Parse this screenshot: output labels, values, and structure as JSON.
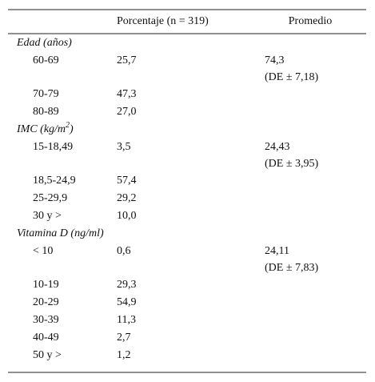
{
  "table": {
    "header": [
      "Porcentaje (n = 319)",
      "Promedio"
    ],
    "sections": [
      {
        "title": "Edad (años)",
        "rows": [
          {
            "label": "60-69",
            "percent": "25,7",
            "mean": [
              "74,3",
              "(DE ± 7,18)"
            ]
          },
          {
            "label": "70-79",
            "percent": "47,3"
          },
          {
            "label": "80-89",
            "percent": "27,0"
          }
        ]
      },
      {
        "title": "IMC (kg/m",
        "title_sup": "2",
        "title_end": ")",
        "rows": [
          {
            "label": "15-18,49",
            "percent": "3,5",
            "mean": [
              "24,43",
              "(DE ± 3,95)"
            ]
          },
          {
            "label": "18,5-24,9",
            "percent": "57,4"
          },
          {
            "label": "25-29,9",
            "percent": "29,2"
          },
          {
            "label": "30 y >",
            "percent": "10,0"
          }
        ]
      },
      {
        "title": "Vitamina D (ng/ml)",
        "rows": [
          {
            "label": "< 10",
            "percent": "0,6",
            "mean": [
              "24,11",
              "(DE ± 7,83)"
            ]
          },
          {
            "label": "10-19",
            "percent": "29,3"
          },
          {
            "label": "20-29",
            "percent": "54,9"
          },
          {
            "label": "30-39",
            "percent": "11,3"
          },
          {
            "label": "40-49",
            "percent": "2,7"
          },
          {
            "label": "50 y >",
            "percent": "1,2"
          }
        ]
      }
    ]
  }
}
